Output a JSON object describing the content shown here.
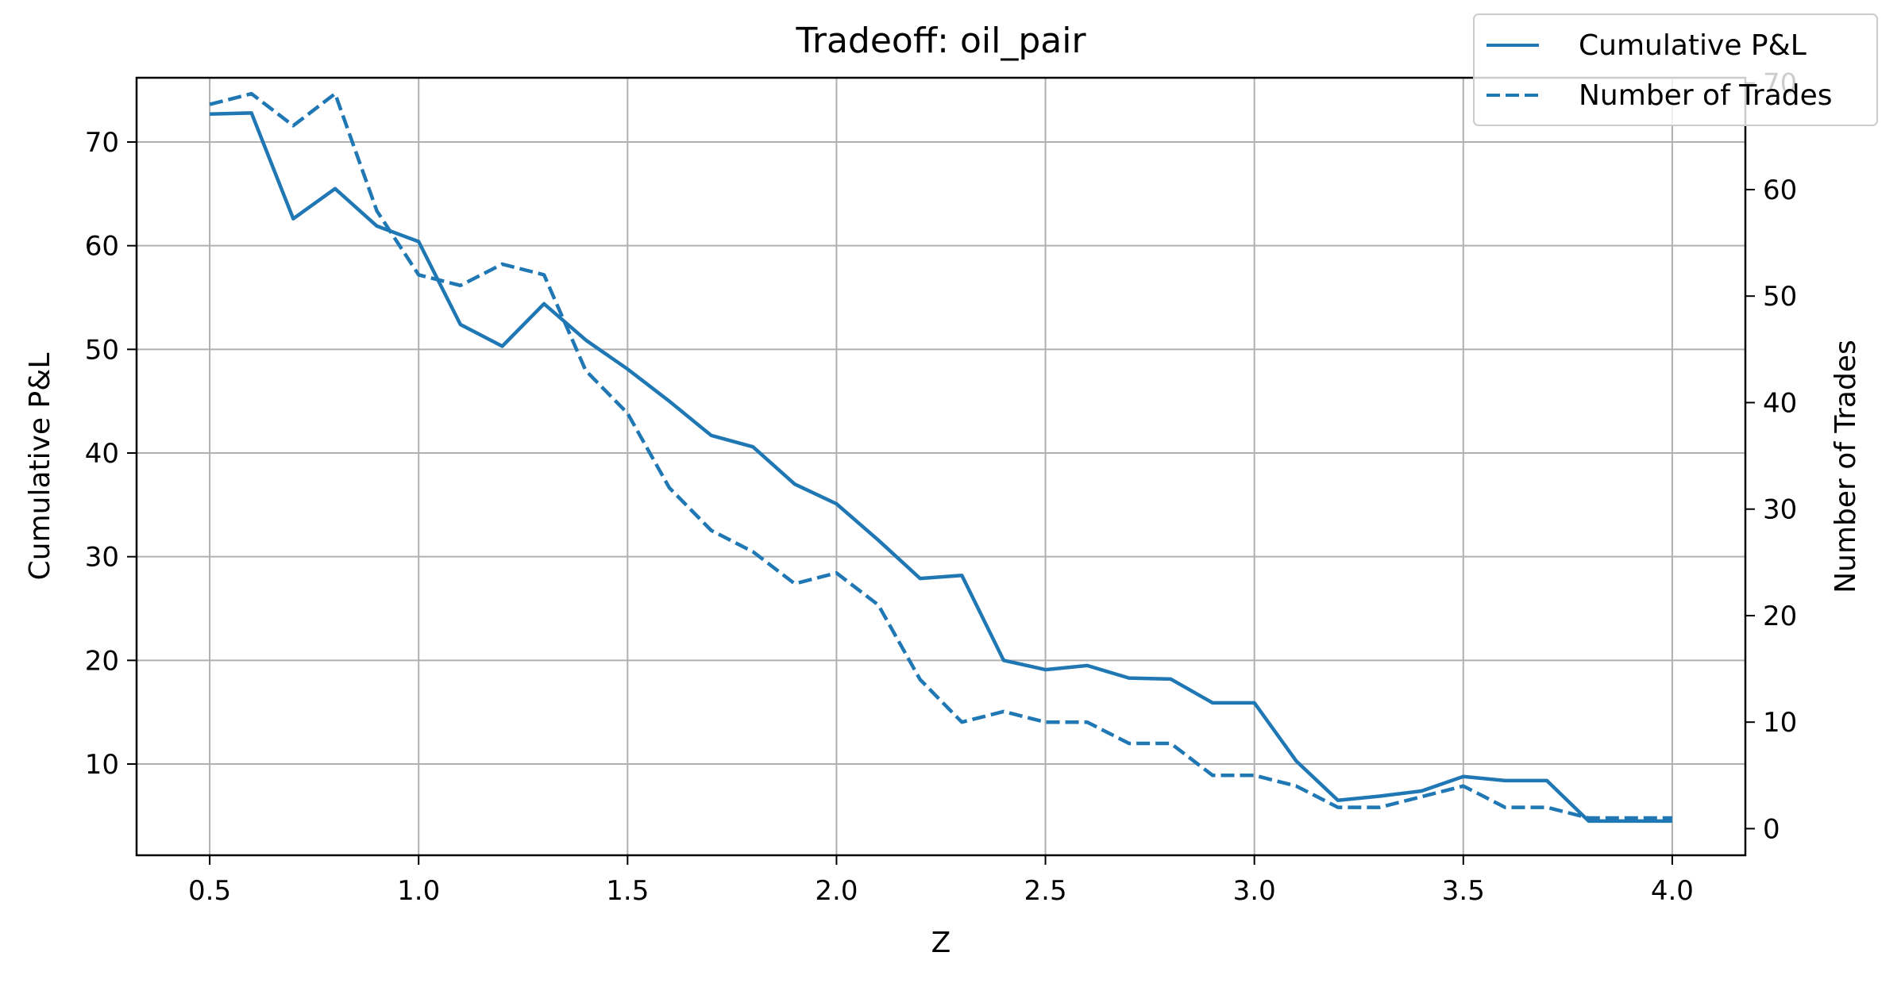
{
  "chart_data": {
    "type": "line",
    "title": "Tradeoff: oil_pair",
    "xlabel": "Z",
    "ylabel": "Cumulative P&L",
    "y2label": "Number of Trades",
    "xlim": [
      0.325,
      4.175
    ],
    "ylim": [
      1.2,
      76.2
    ],
    "y2lim": [
      -2.5,
      70.5
    ],
    "xticks": [
      "0.5",
      "1.0",
      "1.5",
      "2.0",
      "2.5",
      "3.0",
      "3.5",
      "4.0"
    ],
    "yticks": [
      "10",
      "20",
      "30",
      "40",
      "50",
      "60",
      "70"
    ],
    "y2ticks": [
      "0",
      "10",
      "20",
      "30",
      "40",
      "50",
      "60",
      "70"
    ],
    "grid": true,
    "legend_position": "top-right",
    "x": [
      0.5,
      0.6,
      0.7,
      0.8,
      0.9,
      1.0,
      1.1,
      1.2,
      1.3,
      1.4,
      1.5,
      1.6,
      1.7,
      1.8,
      1.9,
      2.0,
      2.1,
      2.2,
      2.3,
      2.4,
      2.5,
      2.6,
      2.7,
      2.8,
      2.9,
      3.0,
      3.1,
      3.2,
      3.3,
      3.4,
      3.5,
      3.6,
      3.7,
      3.8,
      3.9,
      4.0
    ],
    "series": [
      {
        "name": "Cumulative P&L",
        "axis": "left",
        "linestyle": "solid",
        "color": "#1f77b4",
        "values": [
          72.7,
          72.8,
          62.6,
          65.5,
          61.9,
          60.4,
          52.4,
          50.3,
          54.4,
          50.9,
          48.1,
          45.0,
          41.7,
          40.6,
          37.0,
          35.1,
          31.6,
          27.9,
          28.2,
          20.0,
          19.1,
          19.5,
          18.3,
          18.2,
          15.9,
          15.9,
          10.3,
          6.5,
          6.9,
          7.4,
          8.8,
          8.4,
          8.4,
          4.5,
          4.5,
          4.5
        ]
      },
      {
        "name": "Number of Trades",
        "axis": "right",
        "linestyle": "dashed",
        "color": "#1f77b4",
        "values": [
          68,
          69,
          66,
          69,
          58,
          52,
          51,
          53,
          52,
          43,
          39,
          32,
          28,
          26,
          23,
          24,
          21,
          14,
          10,
          11,
          10,
          10,
          8,
          8,
          5,
          5,
          4,
          2,
          2,
          3,
          4,
          2,
          2,
          1,
          1,
          1
        ]
      }
    ]
  }
}
